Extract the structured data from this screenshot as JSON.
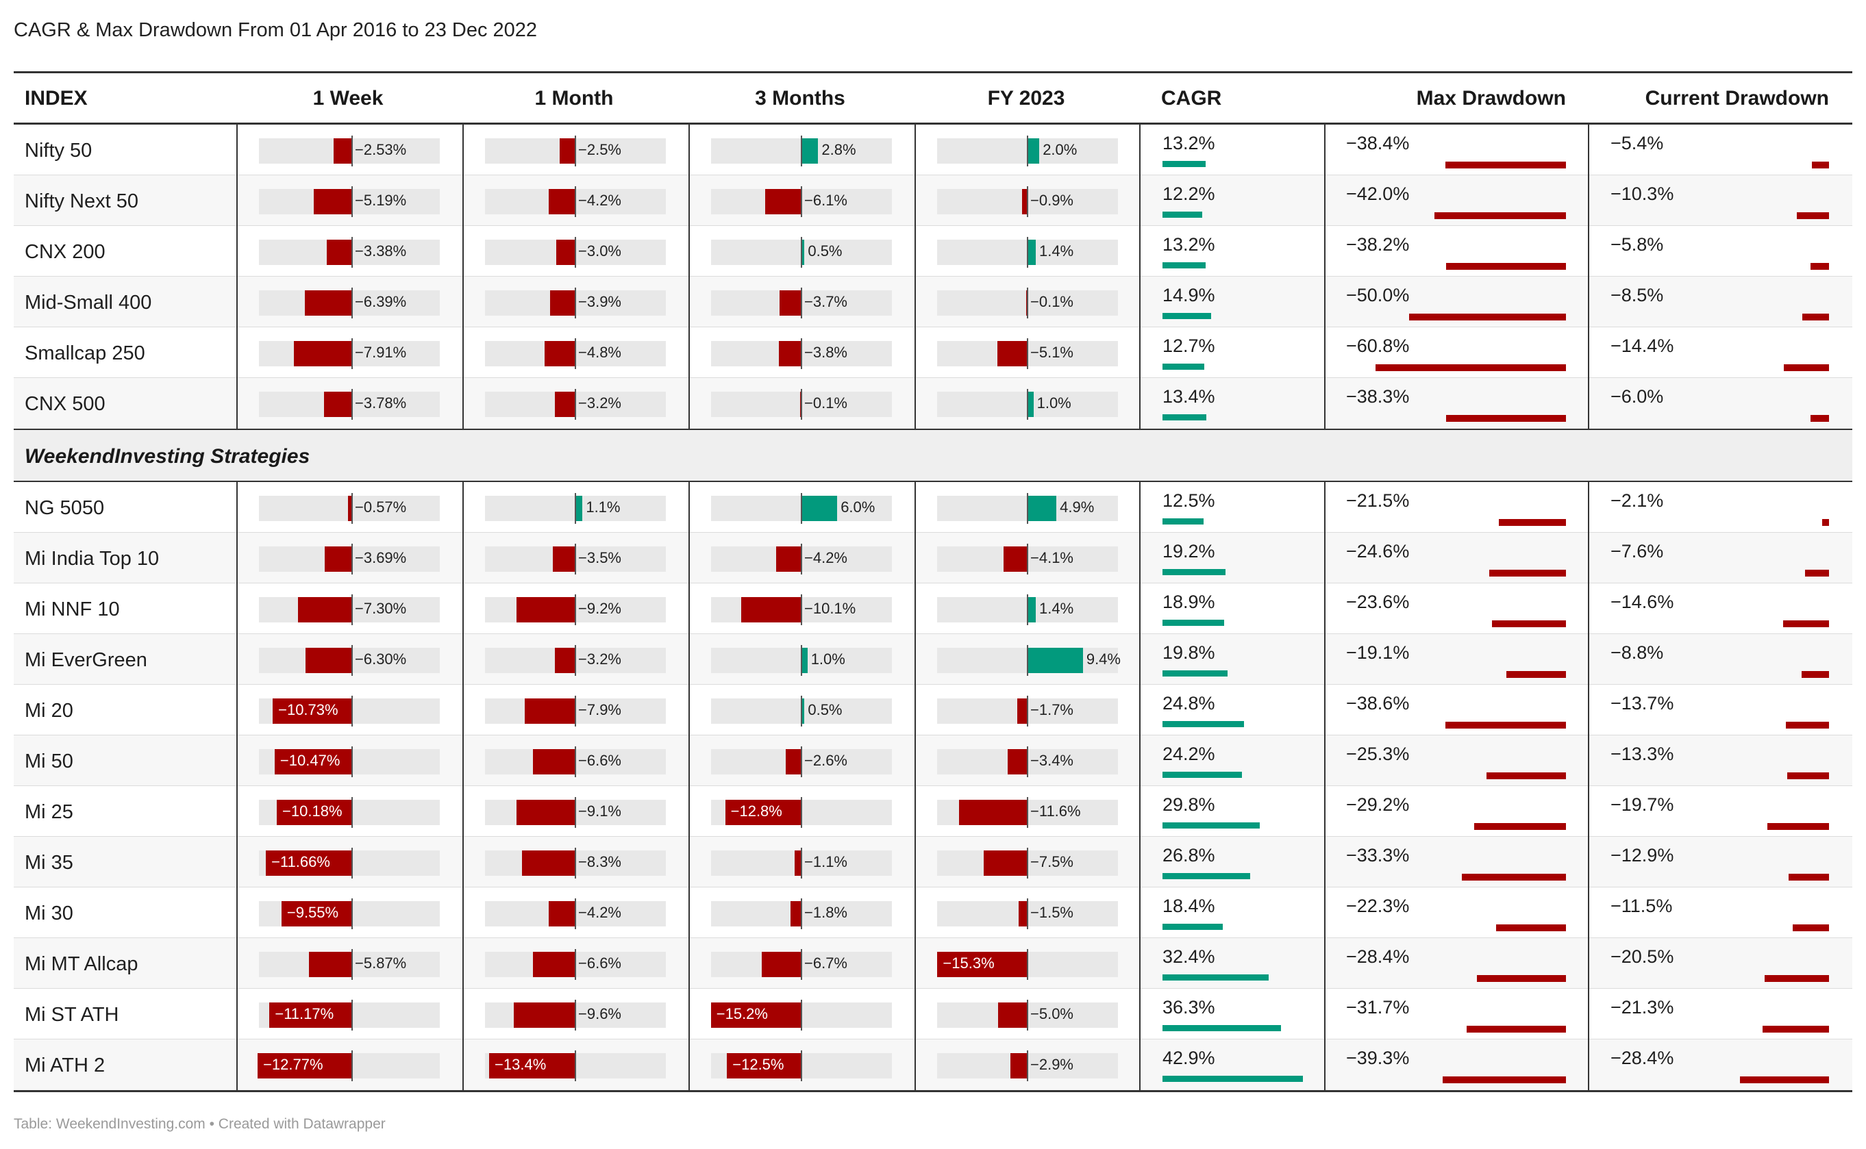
{
  "title": "CAGR & Max Drawdown From 01 Apr 2016 to 23 Dec 2022",
  "source": "Table: WeekendInvesting.com • Created with Datawrapper",
  "chart_data": {
    "type": "table",
    "columns": [
      "INDEX",
      "1 Week",
      "1 Month",
      "3 Months",
      "FY 2023",
      "CAGR",
      "Max Drawdown",
      "Current Drawdown"
    ],
    "groups": [
      {
        "label": "",
        "rows": [
          {
            "name": "Nifty 50",
            "w1": -2.53,
            "w1_text": "−2.53%",
            "m1": -2.5,
            "m1_text": "−2.5%",
            "m3": 2.8,
            "m3_text": "2.8%",
            "fy": 2.0,
            "fy_text": "2.0%",
            "cagr": 13.2,
            "cagr_text": "13.2%",
            "mdd": -38.4,
            "mdd_text": "−38.4%",
            "cdd": -5.4,
            "cdd_text": "−5.4%"
          },
          {
            "name": "Nifty Next 50",
            "w1": -5.19,
            "w1_text": "−5.19%",
            "m1": -4.2,
            "m1_text": "−4.2%",
            "m3": -6.1,
            "m3_text": "−6.1%",
            "fy": -0.9,
            "fy_text": "−0.9%",
            "cagr": 12.2,
            "cagr_text": "12.2%",
            "mdd": -42.0,
            "mdd_text": "−42.0%",
            "cdd": -10.3,
            "cdd_text": "−10.3%"
          },
          {
            "name": "CNX 200",
            "w1": -3.38,
            "w1_text": "−3.38%",
            "m1": -3.0,
            "m1_text": "−3.0%",
            "m3": 0.5,
            "m3_text": "0.5%",
            "fy": 1.4,
            "fy_text": "1.4%",
            "cagr": 13.2,
            "cagr_text": "13.2%",
            "mdd": -38.2,
            "mdd_text": "−38.2%",
            "cdd": -5.8,
            "cdd_text": "−5.8%"
          },
          {
            "name": "Mid-Small 400",
            "w1": -6.39,
            "w1_text": "−6.39%",
            "m1": -3.9,
            "m1_text": "−3.9%",
            "m3": -3.7,
            "m3_text": "−3.7%",
            "fy": -0.1,
            "fy_text": "−0.1%",
            "cagr": 14.9,
            "cagr_text": "14.9%",
            "mdd": -50.0,
            "mdd_text": "−50.0%",
            "cdd": -8.5,
            "cdd_text": "−8.5%"
          },
          {
            "name": "Smallcap 250",
            "w1": -7.91,
            "w1_text": "−7.91%",
            "m1": -4.8,
            "m1_text": "−4.8%",
            "m3": -3.8,
            "m3_text": "−3.8%",
            "fy": -5.1,
            "fy_text": "−5.1%",
            "cagr": 12.7,
            "cagr_text": "12.7%",
            "mdd": -60.8,
            "mdd_text": "−60.8%",
            "cdd": -14.4,
            "cdd_text": "−14.4%"
          },
          {
            "name": "CNX 500",
            "w1": -3.78,
            "w1_text": "−3.78%",
            "m1": -3.2,
            "m1_text": "−3.2%",
            "m3": -0.1,
            "m3_text": "−0.1%",
            "fy": 1.0,
            "fy_text": "1.0%",
            "cagr": 13.4,
            "cagr_text": "13.4%",
            "mdd": -38.3,
            "mdd_text": "−38.3%",
            "cdd": -6.0,
            "cdd_text": "−6.0%"
          }
        ]
      },
      {
        "label": "WeekendInvesting Strategies",
        "rows": [
          {
            "name": "NG 5050",
            "w1": -0.57,
            "w1_text": "−0.57%",
            "m1": 1.1,
            "m1_text": "1.1%",
            "m3": 6.0,
            "m3_text": "6.0%",
            "fy": 4.9,
            "fy_text": "4.9%",
            "cagr": 12.5,
            "cagr_text": "12.5%",
            "mdd": -21.5,
            "mdd_text": "−21.5%",
            "cdd": -2.1,
            "cdd_text": "−2.1%"
          },
          {
            "name": "Mi India Top 10",
            "w1": -3.69,
            "w1_text": "−3.69%",
            "m1": -3.5,
            "m1_text": "−3.5%",
            "m3": -4.2,
            "m3_text": "−4.2%",
            "fy": -4.1,
            "fy_text": "−4.1%",
            "cagr": 19.2,
            "cagr_text": "19.2%",
            "mdd": -24.6,
            "mdd_text": "−24.6%",
            "cdd": -7.6,
            "cdd_text": "−7.6%"
          },
          {
            "name": "Mi NNF 10",
            "w1": -7.3,
            "w1_text": "−7.30%",
            "m1": -9.2,
            "m1_text": "−9.2%",
            "m3": -10.1,
            "m3_text": "−10.1%",
            "fy": 1.4,
            "fy_text": "1.4%",
            "cagr": 18.9,
            "cagr_text": "18.9%",
            "mdd": -23.6,
            "mdd_text": "−23.6%",
            "cdd": -14.6,
            "cdd_text": "−14.6%"
          },
          {
            "name": "Mi EverGreen",
            "w1": -6.3,
            "w1_text": "−6.30%",
            "m1": -3.2,
            "m1_text": "−3.2%",
            "m3": 1.0,
            "m3_text": "1.0%",
            "fy": 9.4,
            "fy_text": "9.4%",
            "cagr": 19.8,
            "cagr_text": "19.8%",
            "mdd": -19.1,
            "mdd_text": "−19.1%",
            "cdd": -8.8,
            "cdd_text": "−8.8%"
          },
          {
            "name": "Mi 20",
            "w1": -10.73,
            "w1_text": "−10.73%",
            "m1": -7.9,
            "m1_text": "−7.9%",
            "m3": 0.5,
            "m3_text": "0.5%",
            "fy": -1.7,
            "fy_text": "−1.7%",
            "cagr": 24.8,
            "cagr_text": "24.8%",
            "mdd": -38.6,
            "mdd_text": "−38.6%",
            "cdd": -13.7,
            "cdd_text": "−13.7%"
          },
          {
            "name": "Mi 50",
            "w1": -10.47,
            "w1_text": "−10.47%",
            "m1": -6.6,
            "m1_text": "−6.6%",
            "m3": -2.6,
            "m3_text": "−2.6%",
            "fy": -3.4,
            "fy_text": "−3.4%",
            "cagr": 24.2,
            "cagr_text": "24.2%",
            "mdd": -25.3,
            "mdd_text": "−25.3%",
            "cdd": -13.3,
            "cdd_text": "−13.3%"
          },
          {
            "name": "Mi 25",
            "w1": -10.18,
            "w1_text": "−10.18%",
            "m1": -9.1,
            "m1_text": "−9.1%",
            "m3": -12.8,
            "m3_text": "−12.8%",
            "fy": -11.6,
            "fy_text": "−11.6%",
            "cagr": 29.8,
            "cagr_text": "29.8%",
            "mdd": -29.2,
            "mdd_text": "−29.2%",
            "cdd": -19.7,
            "cdd_text": "−19.7%"
          },
          {
            "name": "Mi 35",
            "w1": -11.66,
            "w1_text": "−11.66%",
            "m1": -8.3,
            "m1_text": "−8.3%",
            "m3": -1.1,
            "m3_text": "−1.1%",
            "fy": -7.5,
            "fy_text": "−7.5%",
            "cagr": 26.8,
            "cagr_text": "26.8%",
            "mdd": -33.3,
            "mdd_text": "−33.3%",
            "cdd": -12.9,
            "cdd_text": "−12.9%"
          },
          {
            "name": "Mi 30",
            "w1": -9.55,
            "w1_text": "−9.55%",
            "m1": -4.2,
            "m1_text": "−4.2%",
            "m3": -1.8,
            "m3_text": "−1.8%",
            "fy": -1.5,
            "fy_text": "−1.5%",
            "cagr": 18.4,
            "cagr_text": "18.4%",
            "mdd": -22.3,
            "mdd_text": "−22.3%",
            "cdd": -11.5,
            "cdd_text": "−11.5%"
          },
          {
            "name": "Mi MT Allcap",
            "w1": -5.87,
            "w1_text": "−5.87%",
            "m1": -6.6,
            "m1_text": "−6.6%",
            "m3": -6.7,
            "m3_text": "−6.7%",
            "fy": -15.3,
            "fy_text": "−15.3%",
            "cagr": 32.4,
            "cagr_text": "32.4%",
            "mdd": -28.4,
            "mdd_text": "−28.4%",
            "cdd": -20.5,
            "cdd_text": "−20.5%"
          },
          {
            "name": "Mi ST ATH",
            "w1": -11.17,
            "w1_text": "−11.17%",
            "m1": -9.6,
            "m1_text": "−9.6%",
            "m3": -15.2,
            "m3_text": "−15.2%",
            "fy": -5.0,
            "fy_text": "−5.0%",
            "cagr": 36.3,
            "cagr_text": "36.3%",
            "mdd": -31.7,
            "mdd_text": "−31.7%",
            "cdd": -21.3,
            "cdd_text": "−21.3%"
          },
          {
            "name": "Mi ATH 2",
            "w1": -12.77,
            "w1_text": "−12.77%",
            "m1": -13.4,
            "m1_text": "−13.4%",
            "m3": -12.5,
            "m3_text": "−12.5%",
            "fy": -2.9,
            "fy_text": "−2.9%",
            "cagr": 42.9,
            "cagr_text": "42.9%",
            "mdd": -39.3,
            "mdd_text": "−39.3%",
            "cdd": -28.4,
            "cdd_text": "−28.4%"
          }
        ]
      }
    ],
    "colors": {
      "negative": "#a50000",
      "positive": "#029a7d",
      "track": "#e8e8e8"
    }
  }
}
